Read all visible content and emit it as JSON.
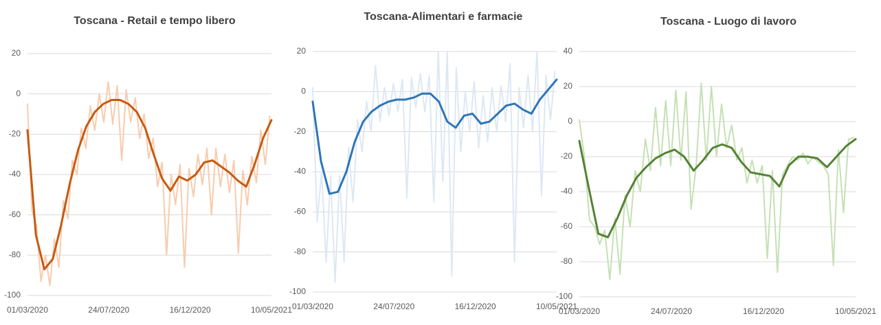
{
  "chart_data": [
    {
      "type": "line",
      "title": "Toscana - Retail e tempo libero",
      "xlim": [
        0,
        435
      ],
      "xticks": [
        {
          "value": 0,
          "label": "01/03/2020"
        },
        {
          "value": 145,
          "label": "24/07/2020"
        },
        {
          "value": 290,
          "label": "16/12/2020"
        },
        {
          "value": 435,
          "label": "10/05/2021"
        }
      ],
      "ylim": [
        -100,
        20
      ],
      "yticks": [
        -100,
        -80,
        -60,
        -40,
        -20,
        0,
        20
      ],
      "grid": true,
      "series": [
        {
          "color": "#f8cbad",
          "width": 2,
          "x": [
            0,
            8,
            16,
            24,
            32,
            40,
            48,
            56,
            64,
            72,
            80,
            88,
            96,
            104,
            112,
            120,
            128,
            136,
            144,
            152,
            160,
            168,
            176,
            184,
            192,
            200,
            208,
            216,
            224,
            232,
            240,
            248,
            256,
            264,
            272,
            280,
            288,
            296,
            304,
            312,
            320,
            328,
            336,
            344,
            352,
            360,
            368,
            376,
            384,
            392,
            400,
            408,
            416,
            424,
            432
          ],
          "values": [
            -5,
            -58,
            -65,
            -93,
            -80,
            -95,
            -72,
            -86,
            -53,
            -62,
            -33,
            -40,
            -17,
            -27,
            -6,
            -18,
            0,
            -14,
            6,
            -15,
            4,
            -33,
            2,
            -14,
            -2,
            -22,
            -10,
            -32,
            -22,
            -46,
            -34,
            -80,
            -40,
            -55,
            -35,
            -86,
            -37,
            -51,
            -30,
            -45,
            -27,
            -60,
            -27,
            -46,
            -30,
            -49,
            -33,
            -79,
            -38,
            -55,
            -31,
            -44,
            -18,
            -35,
            -11
          ]
        },
        {
          "color": "#c55a11",
          "width": 3,
          "x": [
            0,
            15,
            30,
            45,
            60,
            75,
            90,
            105,
            120,
            135,
            150,
            165,
            180,
            195,
            210,
            225,
            240,
            255,
            270,
            285,
            300,
            315,
            330,
            345,
            360,
            375,
            390,
            405,
            420,
            435
          ],
          "values": [
            -18,
            -70,
            -87,
            -82,
            -65,
            -45,
            -28,
            -16,
            -9,
            -5,
            -3,
            -3,
            -5,
            -9,
            -17,
            -30,
            -42,
            -48,
            -41,
            -43,
            -40,
            -34,
            -33,
            -36,
            -39,
            -43,
            -46,
            -35,
            -22,
            -13
          ]
        }
      ]
    },
    {
      "type": "line",
      "title": "Toscana-Alimentari  e farmacie",
      "xlim": [
        0,
        435
      ],
      "xticks": [
        {
          "value": 0,
          "label": "01/03/2020"
        },
        {
          "value": 145,
          "label": "24/07/2020"
        },
        {
          "value": 290,
          "label": "16/12/2020"
        },
        {
          "value": 435,
          "label": "10/05/2021"
        }
      ],
      "ylim": [
        -100,
        20
      ],
      "yticks": [
        -100,
        -80,
        -60,
        -40,
        -20,
        0,
        20
      ],
      "grid": true,
      "series": [
        {
          "color": "#dde8f4",
          "width": 2,
          "x": [
            0,
            8,
            16,
            24,
            32,
            40,
            48,
            56,
            64,
            72,
            80,
            88,
            96,
            104,
            112,
            120,
            128,
            136,
            144,
            152,
            160,
            168,
            176,
            184,
            192,
            200,
            208,
            216,
            224,
            232,
            240,
            248,
            256,
            264,
            272,
            280,
            288,
            296,
            304,
            312,
            320,
            328,
            336,
            344,
            352,
            360,
            368,
            376,
            384,
            392,
            400,
            408,
            416,
            424,
            432
          ],
          "values": [
            2,
            -65,
            -40,
            -85,
            -42,
            -95,
            -42,
            -85,
            -28,
            -55,
            -14,
            -30,
            -5,
            -20,
            13,
            -15,
            2,
            -12,
            4,
            -10,
            6,
            -53,
            7,
            -8,
            9,
            -10,
            8,
            -55,
            20,
            -45,
            20,
            -92,
            12,
            -30,
            0,
            -20,
            5,
            -28,
            -2,
            -25,
            2,
            -20,
            3,
            -15,
            14,
            -85,
            2,
            -18,
            8,
            -20,
            20,
            -52,
            8,
            -14,
            10
          ]
        },
        {
          "color": "#2e75b6",
          "width": 3,
          "x": [
            0,
            15,
            30,
            45,
            60,
            75,
            90,
            105,
            120,
            135,
            150,
            165,
            180,
            195,
            210,
            225,
            240,
            255,
            270,
            285,
            300,
            315,
            330,
            345,
            360,
            375,
            390,
            405,
            420,
            435
          ],
          "values": [
            -5,
            -35,
            -51,
            -50,
            -40,
            -25,
            -15,
            -10,
            -7,
            -5,
            -4,
            -4,
            -3,
            -1,
            -1,
            -5,
            -15,
            -18,
            -12,
            -11,
            -16,
            -15,
            -11,
            -7,
            -6,
            -9,
            -11,
            -4,
            1,
            6
          ]
        }
      ]
    },
    {
      "type": "line",
      "title": "Toscana - Luogo di lavoro",
      "xlim": [
        0,
        435
      ],
      "xticks": [
        {
          "value": 0,
          "label": "01/03/2020"
        },
        {
          "value": 145,
          "label": "24/07/2020"
        },
        {
          "value": 290,
          "label": "16/12/2020"
        },
        {
          "value": 435,
          "label": "10/05/2021"
        }
      ],
      "ylim": [
        -100,
        40
      ],
      "yticks": [
        -100,
        -80,
        -60,
        -40,
        -20,
        0,
        20,
        40
      ],
      "grid": true,
      "series": [
        {
          "color": "#c5e0b4",
          "width": 2,
          "x": [
            0,
            8,
            16,
            24,
            32,
            40,
            48,
            56,
            64,
            72,
            80,
            88,
            96,
            104,
            112,
            120,
            128,
            136,
            144,
            152,
            160,
            168,
            176,
            184,
            192,
            200,
            208,
            216,
            224,
            232,
            240,
            248,
            256,
            264,
            272,
            280,
            288,
            296,
            304,
            312,
            320,
            328,
            336,
            344,
            352,
            360,
            368,
            376,
            384,
            392,
            400,
            408,
            416,
            424,
            432
          ],
          "values": [
            1,
            -20,
            -56,
            -60,
            -70,
            -62,
            -90,
            -55,
            -87,
            -42,
            -60,
            -28,
            -40,
            -10,
            -28,
            8,
            -25,
            12,
            -25,
            18,
            -22,
            17,
            -50,
            -25,
            22,
            -22,
            20,
            -20,
            10,
            -15,
            -2,
            -22,
            -15,
            -35,
            -22,
            -35,
            -25,
            -78,
            -28,
            -86,
            -30,
            -25,
            -20,
            -22,
            -18,
            -24,
            -20,
            -23,
            -25,
            -30,
            -82,
            -16,
            -52,
            -10,
            -9
          ]
        },
        {
          "color": "#548235",
          "width": 3,
          "x": [
            0,
            15,
            30,
            45,
            60,
            75,
            90,
            105,
            120,
            135,
            150,
            165,
            180,
            195,
            210,
            225,
            240,
            255,
            270,
            285,
            300,
            315,
            330,
            345,
            360,
            375,
            390,
            405,
            420,
            435
          ],
          "values": [
            -11,
            -38,
            -64,
            -66,
            -55,
            -42,
            -32,
            -26,
            -21,
            -18,
            -16,
            -20,
            -28,
            -22,
            -15,
            -13,
            -15,
            -23,
            -29,
            -30,
            -31,
            -37,
            -25,
            -20,
            -20,
            -21,
            -26,
            -20,
            -14,
            -10
          ]
        }
      ]
    }
  ]
}
